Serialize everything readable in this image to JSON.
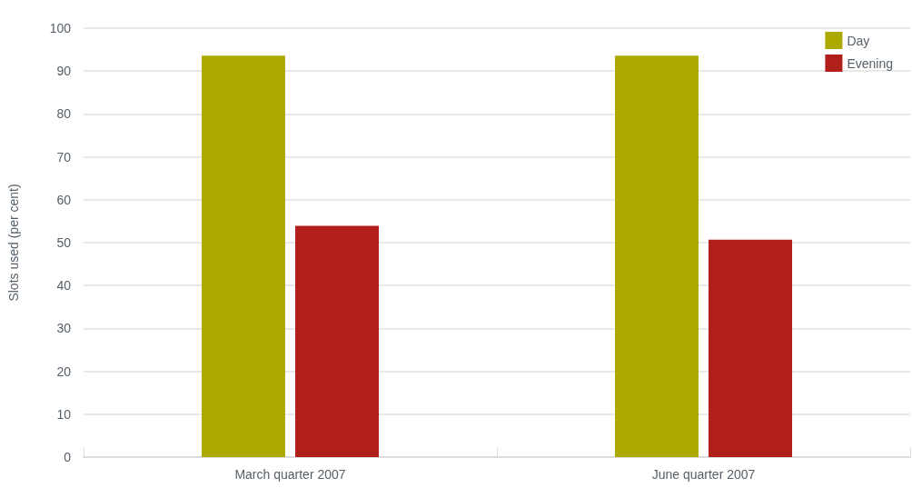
{
  "chart_data": {
    "type": "bar",
    "ylabel": "Slots used (per cent)",
    "categories": [
      "March quarter 2007",
      "June quarter 2007"
    ],
    "series": [
      {
        "name": "Day",
        "color": "#acaa00",
        "values": [
          93.6,
          93.6
        ]
      },
      {
        "name": "Evening",
        "color": "#b11f1b",
        "values": [
          53.9,
          50.7
        ]
      }
    ],
    "ylim": [
      0,
      100
    ],
    "yticks": [
      0,
      10,
      20,
      30,
      40,
      50,
      60,
      70,
      80,
      90,
      100
    ],
    "grid": "y",
    "legend": "top right"
  }
}
